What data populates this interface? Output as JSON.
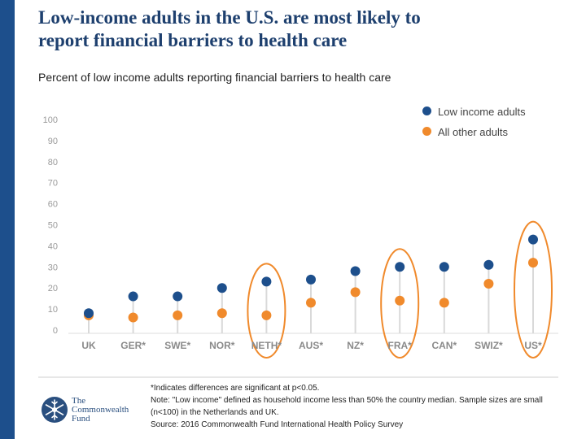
{
  "title_line1": "Low-income adults in the U.S. are most likely to",
  "title_line2": "report financial barriers to health care",
  "subtitle": "Percent of low income adults reporting financial barriers to health care",
  "colors": {
    "low_income": "#1d4f8c",
    "other": "#f08a2c",
    "sidebar": "#1d4f8c"
  },
  "chart_data": {
    "type": "scatter",
    "title": "Percent of low income adults reporting financial barriers to health care",
    "xlabel": "",
    "ylabel": "",
    "ylim": [
      0,
      100
    ],
    "yticks": [
      0,
      10,
      20,
      30,
      40,
      50,
      60,
      70,
      80,
      90,
      100
    ],
    "categories": [
      "UK",
      "GER*",
      "SWE*",
      "NOR*",
      "NETH*",
      "AUS*",
      "NZ*",
      "FRA*",
      "CAN*",
      "SWIZ*",
      "US*"
    ],
    "series": [
      {
        "name": "Low income adults",
        "values": [
          8,
          16,
          16,
          20,
          23,
          24,
          28,
          30,
          30,
          31,
          43
        ]
      },
      {
        "name": "All other adults",
        "values": [
          7,
          6,
          7,
          8,
          7,
          13,
          18,
          14,
          13,
          22,
          32
        ]
      }
    ],
    "highlighted": [
      "NETH*",
      "FRA*",
      "US*"
    ],
    "legend_position": "top-right"
  },
  "footnotes": {
    "line1": "*Indicates differences are significant at p<0.05.",
    "line2": "Note: \"Low income\" defined as household income less than 50% the country median. Sample sizes are small (n<100) in the Netherlands and UK.",
    "line3": "Source: 2016 Commonwealth Fund International Health Policy Survey"
  },
  "logo": {
    "line1": "The",
    "line2": "Commonwealth",
    "line3": "Fund",
    "icon": "snowflake-icon"
  }
}
